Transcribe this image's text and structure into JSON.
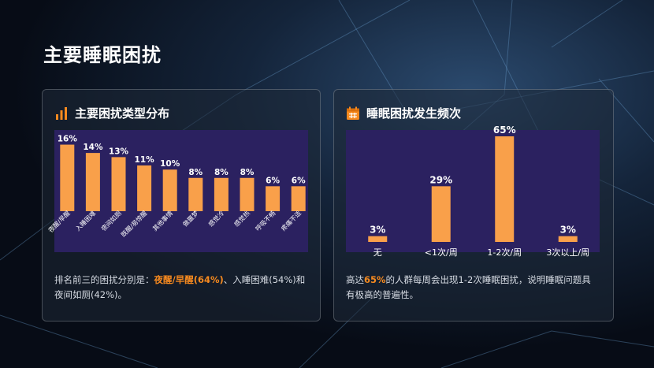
{
  "slide": {
    "title": "主要睡眠困扰"
  },
  "left_card": {
    "title": "主要困扰类型分布",
    "icon": "bar-chart-icon",
    "desc": {
      "prefix": "排名前三的困扰分别是：",
      "highlight": "夜醒/早醒(64%)",
      "suffix": "、入睡困难(54%)和夜间如厕(42%)。"
    }
  },
  "right_card": {
    "title": "睡眠困扰发生频次",
    "icon": "calendar-icon",
    "desc": {
      "prefix": "高达",
      "highlight": "65%",
      "suffix": "的人群每周会出现1-2次睡眠困扰，说明睡眠问题具有极高的普遍性。"
    }
  },
  "colors": {
    "accent": "#f78a1f",
    "bar": "#f9a04a",
    "plot_bg": "#2b2160"
  },
  "chart_data": [
    {
      "type": "bar",
      "categories": [
        "夜醒/早醒",
        "入睡困难",
        "夜间如厕",
        "既醒/易惊醒",
        "其他事情",
        "做噩梦",
        "感觉冷",
        "感觉热",
        "呼吸不畅",
        "疼痛不适"
      ],
      "values": [
        16,
        14,
        13,
        11,
        10,
        8,
        8,
        8,
        6,
        6
      ],
      "value_labels": [
        "16%",
        "14%",
        "13%",
        "11%",
        "10%",
        "8%",
        "8%",
        "8%",
        "6%",
        "6%"
      ],
      "ylim": [
        0,
        18
      ]
    },
    {
      "type": "bar",
      "categories": [
        "无",
        "<1次/周",
        "1-2次/周",
        "3次以上/周"
      ],
      "values": [
        3,
        29,
        65,
        3
      ],
      "value_labels": [
        "3%",
        "29%",
        "65%",
        "3%"
      ],
      "ylim": [
        0,
        55
      ]
    }
  ]
}
